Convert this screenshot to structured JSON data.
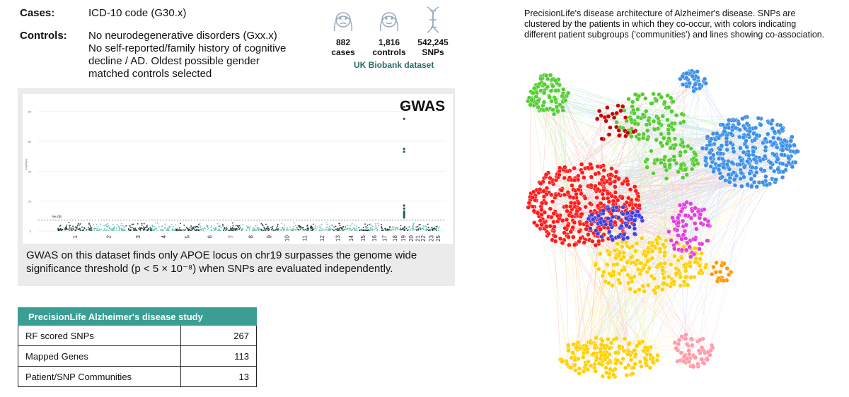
{
  "criteria": {
    "cases_label": "Cases:",
    "cases_text": "ICD-10 code (G30.x)",
    "controls_label": "Controls:",
    "controls_lines": [
      "No neurodegenerative disorders (Gxx.x)",
      "No self-reported/family history of cognitive",
      "decline / AD. Oldest possible gender",
      "matched controls selected"
    ]
  },
  "stats": [
    {
      "icon": "sad-face-icon",
      "value": "882",
      "label": "cases"
    },
    {
      "icon": "smiling-face-icon",
      "value": "1,816",
      "label": "controls"
    },
    {
      "icon": "dna-icon",
      "value": "542,245",
      "label": "SNPs"
    }
  ],
  "dataset": "UK Biobank dataset",
  "gwas": {
    "title": "GWAS",
    "caption": "GWAS on this dataset finds only APOE locus on chr19 surpasses the genome wide significance threshold (p < 5 × 10⁻⁸) when SNPs are evaluated independently.",
    "chart_data": {
      "type": "scatter",
      "ylabel": "-log10(p)",
      "yticks": [
        0,
        20,
        40,
        60,
        80
      ],
      "ylim": [
        0,
        86
      ],
      "threshold": {
        "label": "5e-08",
        "value": 7.3
      },
      "categories": [
        "1",
        "2",
        "3",
        "4",
        "5",
        "6",
        "7",
        "8",
        "9",
        "10",
        "11",
        "12",
        "13",
        "14",
        "15",
        "16",
        "17",
        "18",
        "19",
        "20",
        "21",
        "22",
        "23",
        "25"
      ],
      "colors": [
        "#1f3b3a",
        "#6cc3b5"
      ],
      "significant_points": {
        "chromosome": "19",
        "values": [
          83,
          75,
          55,
          53,
          17,
          15,
          13,
          12,
          11,
          10,
          9
        ]
      }
    }
  },
  "table": {
    "title": "PrecisionLife Alzheimer's disease study",
    "rows": [
      [
        "RF scored SNPs",
        "267"
      ],
      [
        "Mapped Genes",
        "113"
      ],
      [
        "Patient/SNP Communities",
        "13"
      ]
    ]
  },
  "network": {
    "caption": "PrecisionLife's disease architecture of Alzheimer's disease. SNPs are clustered by the patients in which they co-occur, with colors indicating different patient subgroups ('communities') and lines showing co-association.",
    "colors": [
      "#ff1a1a",
      "#3b8fe8",
      "#ffd000",
      "#55cc33",
      "#4040e0",
      "#e040e0",
      "#ff99aa",
      "#ff9900",
      "#cc0000"
    ]
  }
}
